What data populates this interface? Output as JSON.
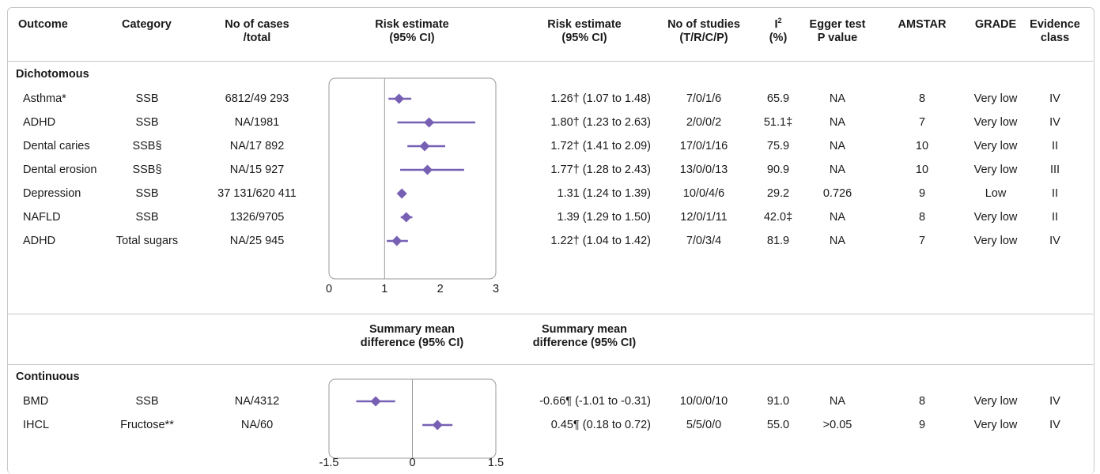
{
  "headers": {
    "outcome": "Outcome",
    "category": "Category",
    "cases_1": "No of cases",
    "cases_2": "/total",
    "plot_1": "Risk estimate",
    "plot_2": "(95% CI)",
    "est_1": "Risk estimate",
    "est_2": "(95% CI)",
    "studies_1": "No of studies",
    "studies_2": "(T/R/C/P)",
    "i2_1": "I",
    "i2_sup": "2",
    "i2_2": "(%)",
    "egger_1": "Egger test",
    "egger_2": "P value",
    "amstar": "AMSTAR",
    "grade": "GRADE",
    "evidence_1": "Evidence",
    "evidence_2": "class"
  },
  "headers2": {
    "plot_1": "Summary mean",
    "plot_2": "difference (95% CI)",
    "est_1": "Summary mean",
    "est_2": "difference (95% CI)"
  },
  "sections": {
    "dichotomous": "Dichotomous",
    "continuous": "Continuous"
  },
  "dichotomous_rows": [
    {
      "outcome": "Asthma*",
      "category": "SSB",
      "cases": "6812/49 293",
      "estimate": "1.26† (1.07 to 1.48)",
      "studies": "7/0/1/6",
      "i2": "65.9",
      "egger": "NA",
      "amstar": "8",
      "grade": "Very low",
      "evidence": "IV"
    },
    {
      "outcome": "ADHD",
      "category": "SSB",
      "cases": "NA/1981",
      "estimate": "1.80† (1.23 to 2.63)",
      "studies": "2/0/0/2",
      "i2": "51.1‡",
      "egger": "NA",
      "amstar": "7",
      "grade": "Very low",
      "evidence": "IV"
    },
    {
      "outcome": "Dental caries",
      "category": "SSB§",
      "cases": "NA/17 892",
      "estimate": "1.72† (1.41 to 2.09)",
      "studies": "17/0/1/16",
      "i2": "75.9",
      "egger": "NA",
      "amstar": "10",
      "grade": "Very low",
      "evidence": "II"
    },
    {
      "outcome": "Dental erosion",
      "category": "SSB§",
      "cases": "NA/15 927",
      "estimate": "1.77† (1.28 to 2.43)",
      "studies": "13/0/0/13",
      "i2": "90.9",
      "egger": "NA",
      "amstar": "10",
      "grade": "Very low",
      "evidence": "III"
    },
    {
      "outcome": "Depression",
      "category": "SSB",
      "cases": "37 131/620 411",
      "estimate": "1.31 (1.24 to 1.39)",
      "studies": "10/0/4/6",
      "i2": "29.2",
      "egger": "0.726",
      "amstar": "9",
      "grade": "Low",
      "evidence": "II"
    },
    {
      "outcome": "NAFLD",
      "category": "SSB",
      "cases": "1326/9705",
      "estimate": "1.39 (1.29 to 1.50)",
      "studies": "12/0/1/11",
      "i2": "42.0‡",
      "egger": "NA",
      "amstar": "8",
      "grade": "Very low",
      "evidence": "II"
    },
    {
      "outcome": "ADHD",
      "category": "Total sugars",
      "cases": "NA/25 945",
      "estimate": "1.22† (1.04 to 1.42)",
      "studies": "7/0/3/4",
      "i2": "81.9",
      "egger": "NA",
      "amstar": "7",
      "grade": "Very low",
      "evidence": "IV"
    }
  ],
  "continuous_rows": [
    {
      "outcome": "BMD",
      "category": "SSB",
      "cases": "NA/4312",
      "estimate": "-0.66¶ (-1.01 to -0.31)",
      "studies": "10/0/0/10",
      "i2": "91.0",
      "egger": "NA",
      "amstar": "8",
      "grade": "Very low",
      "evidence": "IV"
    },
    {
      "outcome": "IHCL",
      "category": "Fructose**",
      "cases": "NA/60",
      "estimate": "0.45¶ (0.18 to 0.72)",
      "studies": "5/5/0/0",
      "i2": "55.0",
      "egger": ">0.05",
      "amstar": "9",
      "grade": "Very low",
      "evidence": "IV"
    }
  ],
  "colors": {
    "marker": "#7760b4",
    "frame": "#c8c8c8",
    "refline": "#9a9a9a"
  },
  "chart_data": [
    {
      "type": "forest",
      "categories": [
        "Asthma*",
        "ADHD",
        "Dental caries",
        "Dental erosion",
        "Depression",
        "NAFLD",
        "ADHD"
      ],
      "estimate": [
        1.26,
        1.8,
        1.72,
        1.77,
        1.31,
        1.39,
        1.22
      ],
      "lower": [
        1.07,
        1.23,
        1.41,
        1.28,
        1.24,
        1.29,
        1.04
      ],
      "upper": [
        1.48,
        2.63,
        2.09,
        2.43,
        1.39,
        1.5,
        1.42
      ],
      "xlim": [
        0,
        3
      ],
      "xticks": [
        0,
        1,
        2,
        3
      ],
      "xtick_labels": [
        "0",
        "1",
        "2",
        "3"
      ],
      "reference": 1
    },
    {
      "type": "forest",
      "categories": [
        "BMD",
        "IHCL"
      ],
      "estimate": [
        -0.66,
        0.45
      ],
      "lower": [
        -1.01,
        0.18
      ],
      "upper": [
        -0.31,
        0.72
      ],
      "xlim": [
        -1.5,
        1.5
      ],
      "xticks": [
        -1.5,
        0,
        1.5
      ],
      "xtick_labels": [
        "-1.5",
        "0",
        "1.5"
      ],
      "reference": 0
    }
  ]
}
